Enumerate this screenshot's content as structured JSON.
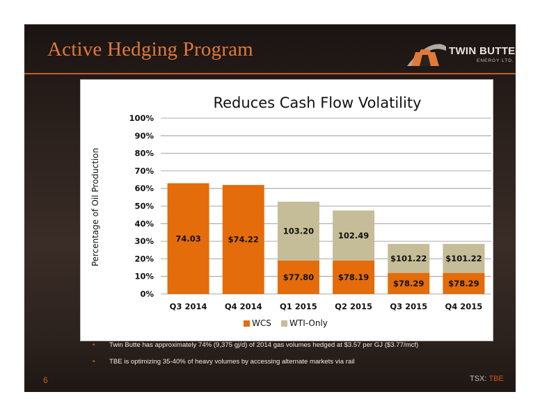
{
  "slide": {
    "title": "Active Hedging Program",
    "page_number": "6",
    "ticker_label": "TSX:",
    "ticker_symbol": "TBE",
    "logo": {
      "name": "TWIN BUTTE",
      "subtitle": "ENERGY LTD."
    },
    "bullets": [
      "Twin Butte has approximately 74% (9,375 gj/d) of 2014 gas volumes hedged at $3.57 per GJ ($3.77/mcf)",
      "TBE is optimizing 35-40% of heavy volumes by accessing alternate markets via rail"
    ]
  },
  "colors": {
    "accent": "#c85f1d",
    "wcs": "#e46c0a",
    "wti": "#c4bd97"
  },
  "chart_data": {
    "type": "bar",
    "stacked": true,
    "title": "Reduces Cash Flow Volatility",
    "xlabel": "",
    "ylabel": "Percentage of Oil Production",
    "categories": [
      "Q3 2014",
      "Q4 2014",
      "Q1 2015",
      "Q2 2015",
      "Q3 2015",
      "Q4 2015"
    ],
    "series": [
      {
        "name": "WCS",
        "color": "#e46c0a",
        "values": [
          63,
          62,
          19,
          19,
          12,
          12
        ],
        "labels": [
          "74.03",
          "$74.22",
          "$77.80",
          "$78.19",
          "$78.29",
          "$78.29"
        ]
      },
      {
        "name": "WTI-Only",
        "color": "#c4bd97",
        "values": [
          0,
          0,
          33.5,
          28.5,
          16.5,
          16.5
        ],
        "labels": [
          "",
          "",
          "103.20",
          "102.49",
          "$101.22",
          "$101.22"
        ]
      }
    ],
    "ylim": [
      0,
      100
    ],
    "yticks": [
      "0%",
      "10%",
      "20%",
      "30%",
      "40%",
      "50%",
      "60%",
      "70%",
      "80%",
      "90%",
      "100%"
    ],
    "grid": true,
    "legend": "bottom"
  }
}
